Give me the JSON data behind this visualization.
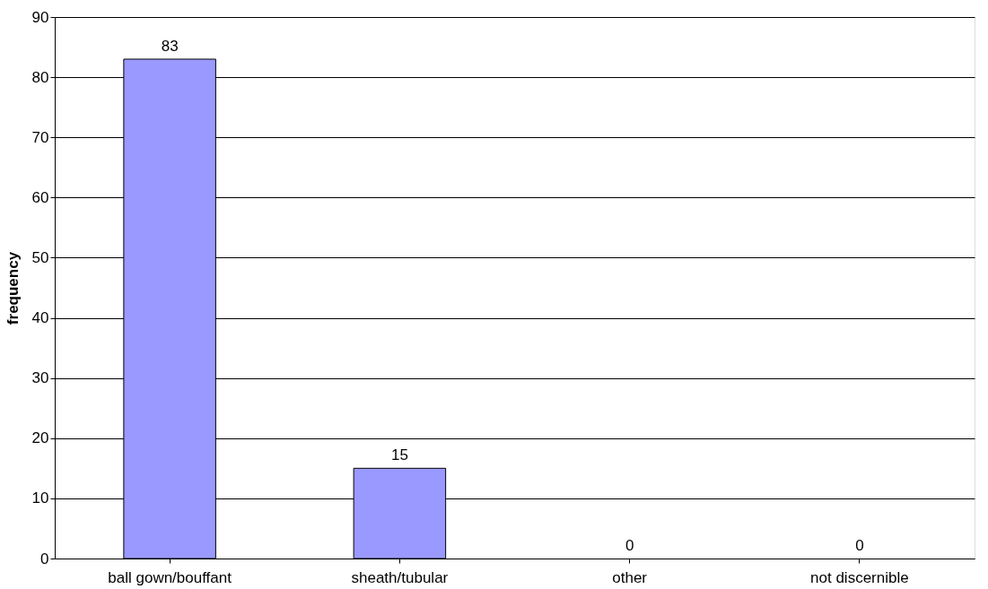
{
  "chart_data": {
    "type": "bar",
    "ylabel": "frequency",
    "categories": [
      "ball gown/bouffant",
      "sheath/tubular",
      "other",
      "not discernible"
    ],
    "values": [
      83,
      15,
      0,
      0
    ],
    "color": "#9999ff",
    "ylim": [
      0,
      90
    ],
    "yticks": [
      0,
      10,
      20,
      30,
      40,
      50,
      60,
      70,
      80,
      90
    ],
    "grid": "y",
    "data_labels": true
  }
}
